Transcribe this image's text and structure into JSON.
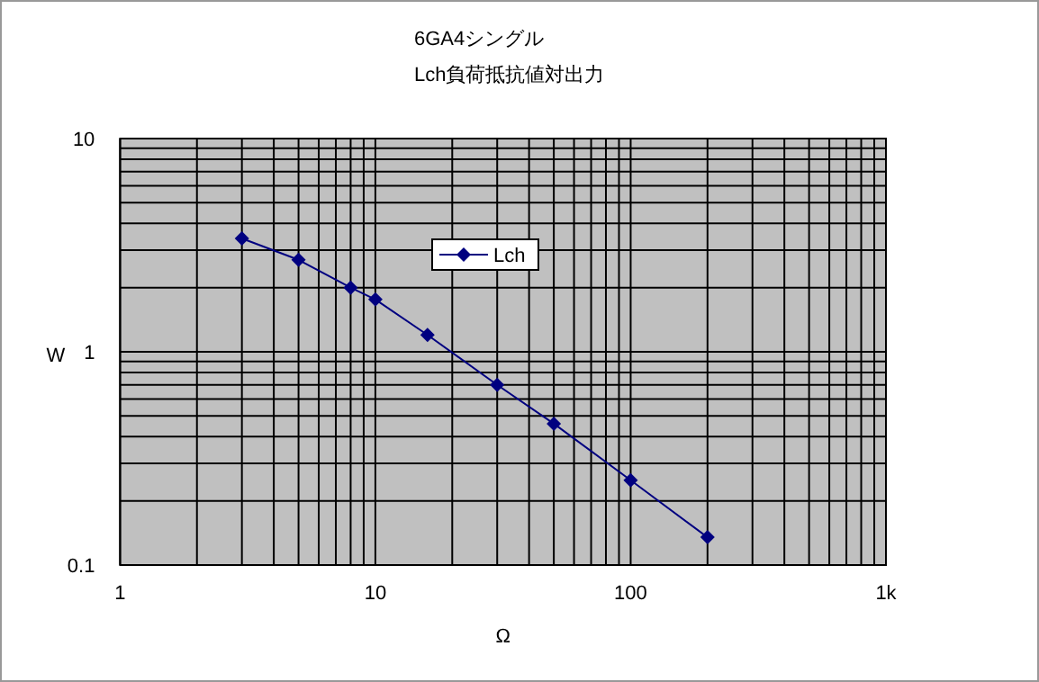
{
  "chart_data": {
    "type": "line",
    "title": "6GA4シングル",
    "subtitle": "Lch負荷抵抗値対出力",
    "xlabel": "Ω",
    "ylabel": "W",
    "log": "xy",
    "grid": true,
    "legend": "top",
    "marker": "diamond",
    "line_style": "solid",
    "xlim": [
      1,
      1000
    ],
    "xticks": [
      1,
      10,
      100,
      {
        "value": 1000,
        "label": "1k"
      }
    ],
    "ylim": [
      0.1,
      10
    ],
    "yticks": [
      0.1,
      1,
      10
    ],
    "x": [
      3,
      5,
      8,
      10,
      16,
      30,
      50,
      100,
      200
    ],
    "series": [
      {
        "name": "Lch",
        "color": "#000080",
        "values": [
          3.4,
          2.7,
          2.0,
          1.76,
          1.2,
          0.7,
          0.46,
          0.25,
          0.135
        ]
      }
    ]
  }
}
